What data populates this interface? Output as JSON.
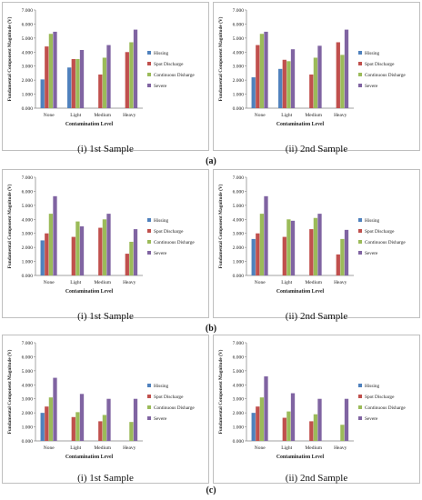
{
  "legend_labels": [
    "Hissing",
    "Spot Discharge",
    "Continuous Disharge",
    "Severe"
  ],
  "colors": {
    "hissing": "#4f81bd",
    "spot": "#c0504d",
    "continuous": "#9bbb59",
    "severe": "#8064a2",
    "border": "#bfbfbf",
    "axis": "#808080"
  },
  "rows": [
    {
      "label": "(a)",
      "captions": [
        "(i) 1st Sample",
        "(ii) 2nd Sample"
      ]
    },
    {
      "label": "(b)",
      "captions": [
        "(i) 1st Sample",
        "(ii) 2nd Sample"
      ]
    },
    {
      "label": "(c)",
      "captions": [
        "(i) 1st Sample",
        "(ii) 2nd Sample"
      ]
    }
  ],
  "chart_data": [
    {
      "type": "bar",
      "row": "(a)",
      "sample": "(i) 1st Sample",
      "categories": [
        "None",
        "Light",
        "Medium",
        "Heavy"
      ],
      "xlabel": "Contamination Level",
      "ylabel": "Fundamental Component Magnitude (V)",
      "ylim": [
        0,
        7
      ],
      "yticks": [
        "0.000",
        "1.000",
        "2.000",
        "3.000",
        "4.000",
        "5.000",
        "6.000",
        "7.000"
      ],
      "legend": "right",
      "series": [
        {
          "name": "Hissing",
          "values": [
            2.05,
            2.9,
            0,
            0
          ]
        },
        {
          "name": "Spot Discharge",
          "values": [
            4.4,
            3.5,
            2.4,
            4.0
          ]
        },
        {
          "name": "Continuous Disharge",
          "values": [
            5.3,
            3.5,
            3.6,
            4.7
          ]
        },
        {
          "name": "Severe",
          "values": [
            5.45,
            4.15,
            4.5,
            5.6
          ]
        }
      ]
    },
    {
      "type": "bar",
      "row": "(a)",
      "sample": "(ii) 2nd Sample",
      "categories": [
        "None",
        "Light",
        "Medium",
        "Heavy"
      ],
      "xlabel": "Contamination Level",
      "ylabel": "Fundamental Component Magnitude (V)",
      "ylim": [
        0,
        7
      ],
      "yticks": [
        "0.000",
        "1.000",
        "2.000",
        "3.000",
        "4.000",
        "5.000",
        "6.000",
        "7.000"
      ],
      "legend": "right",
      "series": [
        {
          "name": "Hissing",
          "values": [
            2.2,
            2.8,
            0,
            0
          ]
        },
        {
          "name": "Spot Discharge",
          "values": [
            4.5,
            3.45,
            2.4,
            4.7
          ]
        },
        {
          "name": "Continuous Disharge",
          "values": [
            5.3,
            3.35,
            3.6,
            3.8
          ]
        },
        {
          "name": "Severe",
          "values": [
            5.45,
            4.2,
            4.45,
            5.6
          ]
        }
      ]
    },
    {
      "type": "bar",
      "row": "(b)",
      "sample": "(i) 1st Sample",
      "categories": [
        "None",
        "Light",
        "Medium",
        "Heavy"
      ],
      "xlabel": "Contamination Level",
      "ylabel": "Fundamental Component Magnitude (V)",
      "ylim": [
        0,
        7
      ],
      "yticks": [
        "0.000",
        "1.000",
        "2.000",
        "3.000",
        "4.000",
        "5.000",
        "6.000",
        "7.000"
      ],
      "legend": "right",
      "series": [
        {
          "name": "Hissing",
          "values": [
            2.5,
            0,
            0,
            0
          ]
        },
        {
          "name": "Spot Discharge",
          "values": [
            3.0,
            2.75,
            3.4,
            1.55
          ]
        },
        {
          "name": "Continuous Disharge",
          "values": [
            4.4,
            3.85,
            4.0,
            2.4
          ]
        },
        {
          "name": "Severe",
          "values": [
            5.65,
            3.5,
            4.4,
            3.3
          ]
        }
      ]
    },
    {
      "type": "bar",
      "row": "(b)",
      "sample": "(ii) 2nd Sample",
      "categories": [
        "None",
        "Light",
        "Medium",
        "Heavy"
      ],
      "xlabel": "Contamination Level",
      "ylabel": "Fundamental Component Magnitude (V)",
      "ylim": [
        0,
        7
      ],
      "yticks": [
        "0.000",
        "1.000",
        "2.000",
        "3.000",
        "4.000",
        "5.000",
        "6.000",
        "7.000"
      ],
      "legend": "right",
      "series": [
        {
          "name": "Hissing",
          "values": [
            2.6,
            0,
            0,
            0
          ]
        },
        {
          "name": "Spot Discharge",
          "values": [
            3.0,
            2.75,
            3.3,
            1.5
          ]
        },
        {
          "name": "Continuous Disharge",
          "values": [
            4.4,
            4.0,
            4.1,
            2.6
          ]
        },
        {
          "name": "Severe",
          "values": [
            5.65,
            3.9,
            4.4,
            3.25
          ]
        }
      ]
    },
    {
      "type": "bar",
      "row": "(c)",
      "sample": "(i) 1st Sample",
      "categories": [
        "None",
        "Light",
        "Medium",
        "Heavy"
      ],
      "xlabel": "Contamination Level",
      "ylabel": "Fundamental Component Magnitude (V)",
      "ylim": [
        0,
        7
      ],
      "yticks": [
        "0.000",
        "1.000",
        "2.000",
        "3.000",
        "4.000",
        "5.000",
        "6.000",
        "7.000"
      ],
      "legend": "right",
      "series": [
        {
          "name": "Hissing",
          "values": [
            2.0,
            0,
            0,
            0
          ]
        },
        {
          "name": "Spot Discharge",
          "values": [
            2.45,
            1.7,
            1.4,
            0
          ]
        },
        {
          "name": "Continuous Disharge",
          "values": [
            3.1,
            2.05,
            1.85,
            1.35
          ]
        },
        {
          "name": "Severe",
          "values": [
            4.5,
            3.35,
            3.0,
            3.0
          ]
        }
      ]
    },
    {
      "type": "bar",
      "row": "(c)",
      "sample": "(ii) 2nd Sample",
      "categories": [
        "None",
        "Light",
        "Medium",
        "Heavy"
      ],
      "xlabel": "Contamination Level",
      "ylabel": "Fundamental Component Magnitude (V)",
      "ylim": [
        0,
        7
      ],
      "yticks": [
        "0.000",
        "1.000",
        "2.000",
        "3.000",
        "4.000",
        "5.000",
        "6.000",
        "7.000"
      ],
      "legend": "right",
      "series": [
        {
          "name": "Hissing",
          "values": [
            2.0,
            0,
            0,
            0
          ]
        },
        {
          "name": "Spot Discharge",
          "values": [
            2.45,
            1.65,
            1.4,
            0
          ]
        },
        {
          "name": "Continuous Disharge",
          "values": [
            3.1,
            2.1,
            1.9,
            1.15
          ]
        },
        {
          "name": "Severe",
          "values": [
            4.6,
            3.4,
            3.0,
            3.0
          ]
        }
      ]
    }
  ]
}
